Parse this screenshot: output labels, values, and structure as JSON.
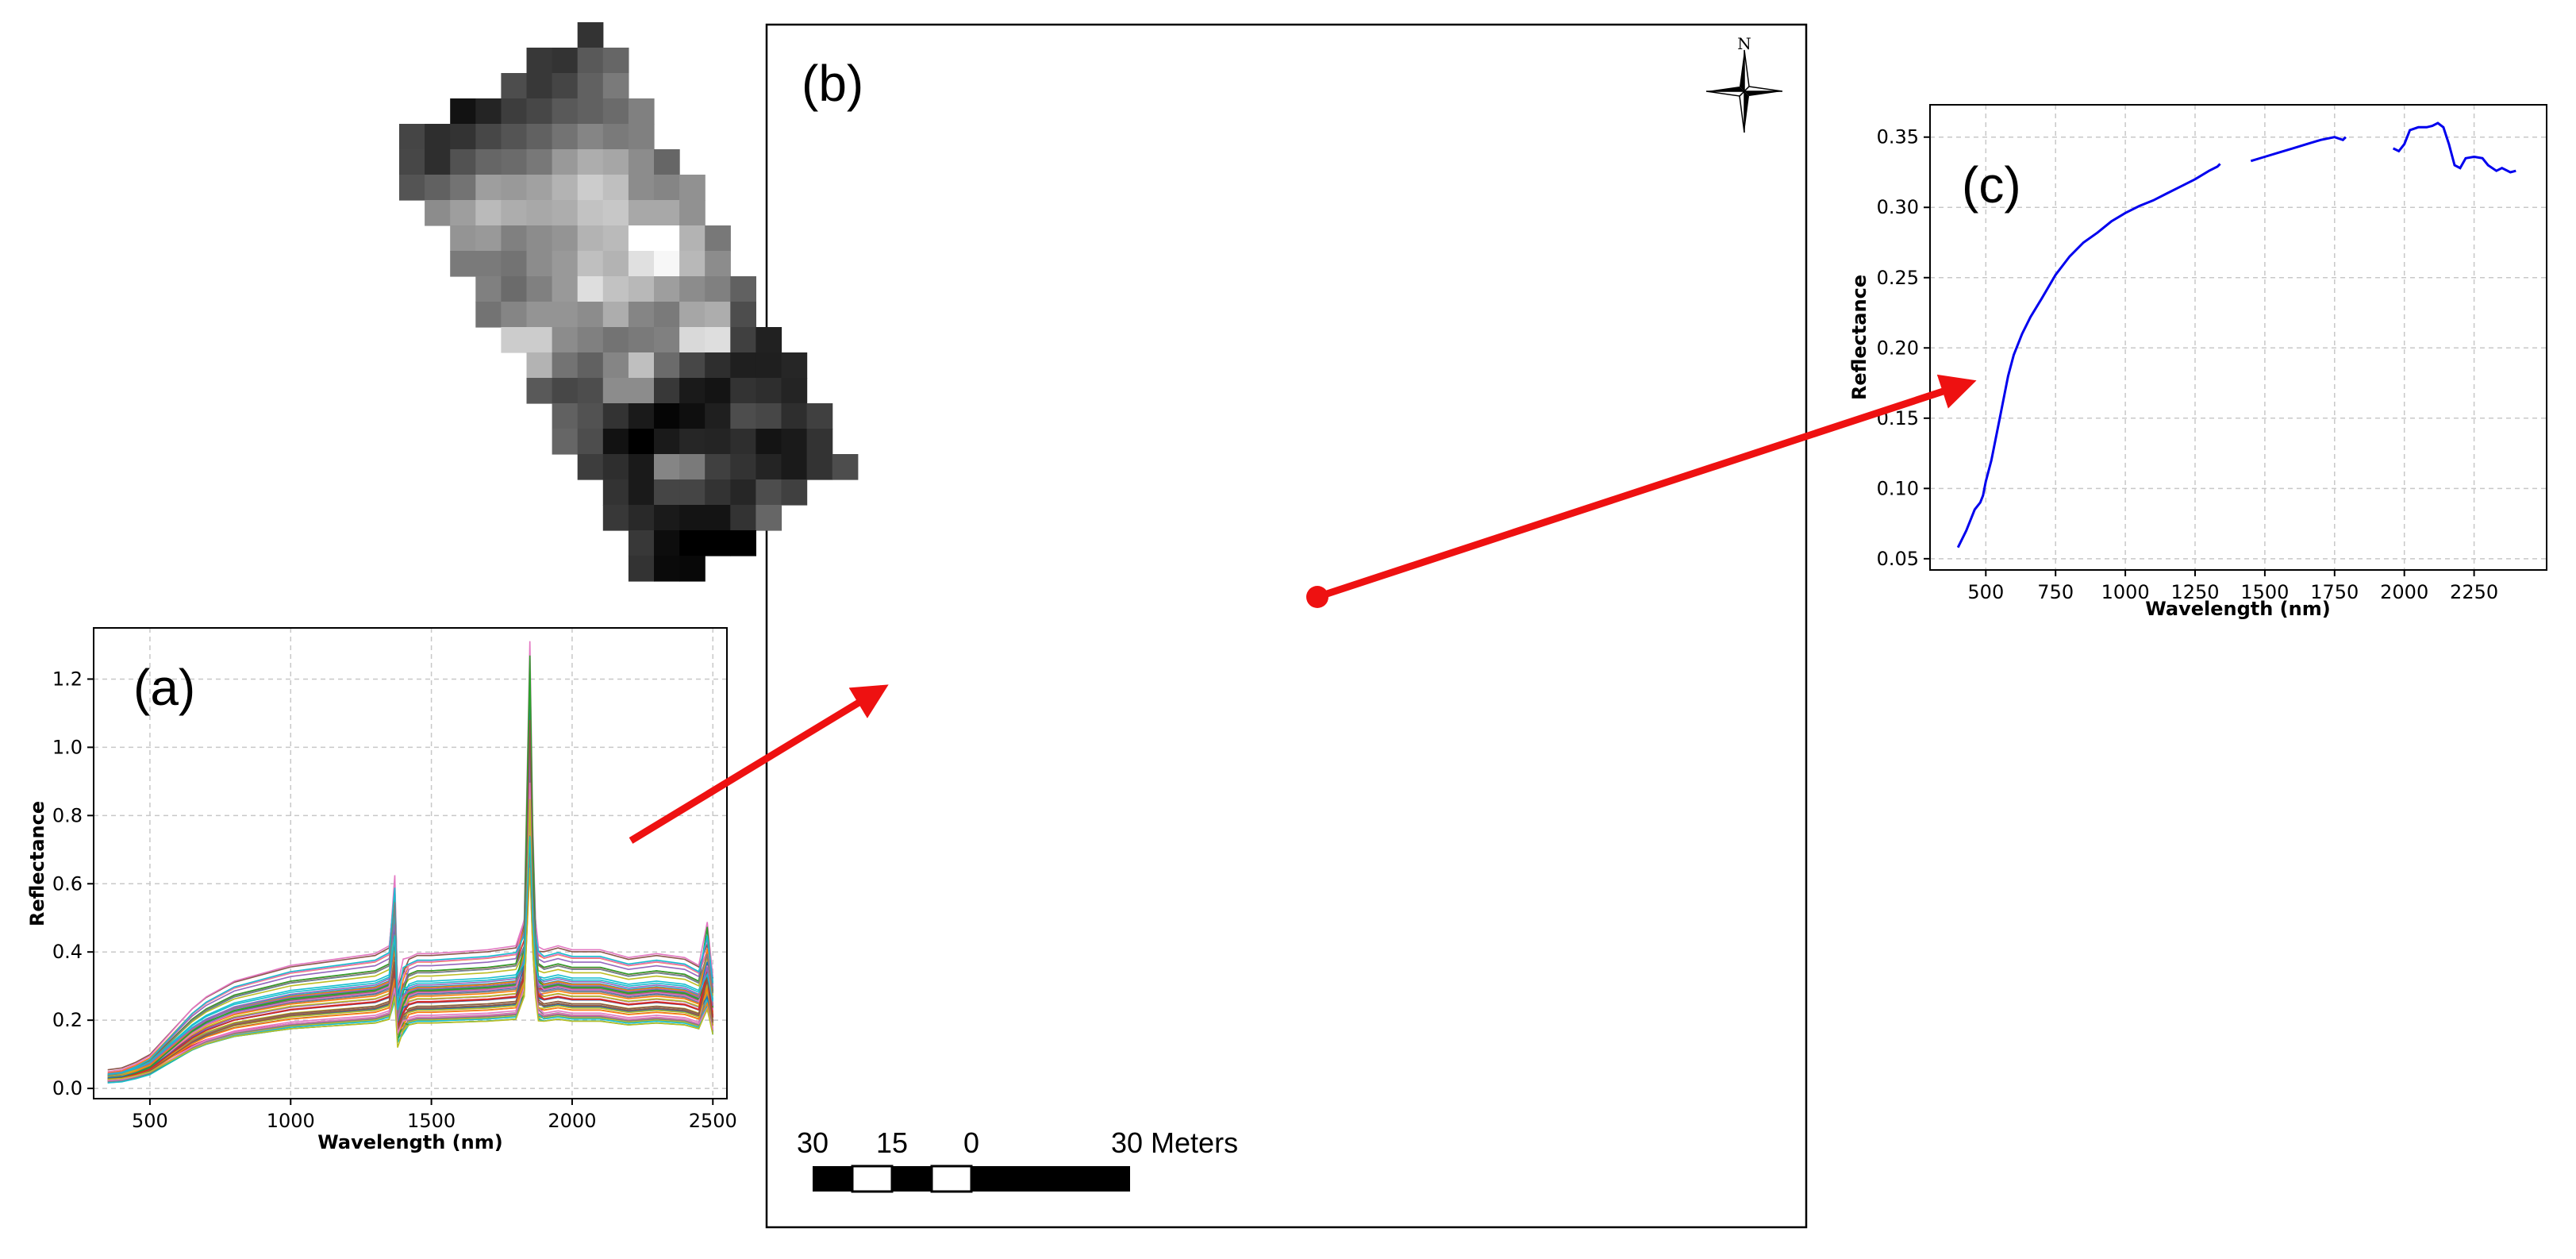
{
  "panel_a": {
    "label": "(a)",
    "xlabel": "Wavelength (nm)",
    "ylabel": "Reflectance",
    "xticks": [
      "500",
      "1000",
      "1500",
      "2000",
      "2500"
    ],
    "yticks": [
      "0.0",
      "0.2",
      "0.4",
      "0.6",
      "0.8",
      "1.0",
      "1.2"
    ]
  },
  "panel_b": {
    "label": "(b)",
    "north_label": "N",
    "scale_labels": [
      "30",
      "15",
      "0",
      "30 Meters"
    ]
  },
  "panel_c": {
    "label": "(c)",
    "xlabel": "Wavelength (nm)",
    "ylabel": "Reflectance",
    "xticks": [
      "500",
      "750",
      "1000",
      "1250",
      "1500",
      "1750",
      "2000",
      "2250"
    ],
    "yticks": [
      "0.05",
      "0.10",
      "0.15",
      "0.20",
      "0.25",
      "0.30",
      "0.35"
    ]
  },
  "colors": {
    "arrow": "#ee1111",
    "spectrum_c": "#0000ee",
    "series_palette": [
      "#1f77b4",
      "#ff7f0e",
      "#2ca02c",
      "#d62728",
      "#9467bd",
      "#8c564b",
      "#e377c2",
      "#7f7f7f",
      "#bcbd22",
      "#17becf"
    ]
  },
  "chart_data": [
    {
      "type": "line",
      "panel": "(a)",
      "xlabel": "Wavelength (nm)",
      "ylabel": "Reflectance",
      "xlim": [
        300,
        2550
      ],
      "ylim": [
        -0.03,
        1.35
      ],
      "grid": true,
      "series_count": 60,
      "series_palette": "tab10 (many overlapping pixel spectra)",
      "representative_spectrum": {
        "x": [
          350,
          400,
          450,
          500,
          550,
          600,
          650,
          700,
          750,
          800,
          900,
          1000,
          1100,
          1200,
          1300,
          1350,
          1370,
          1380,
          1400,
          1420,
          1450,
          1500,
          1600,
          1700,
          1800,
          1830,
          1850,
          1860,
          1870,
          1880,
          1900,
          1950,
          2000,
          2100,
          2200,
          2300,
          2400,
          2450,
          2480,
          2500
        ],
        "y": [
          0.04,
          0.045,
          0.06,
          0.08,
          0.12,
          0.16,
          0.2,
          0.23,
          0.25,
          0.27,
          0.29,
          0.31,
          0.32,
          0.33,
          0.34,
          0.36,
          0.5,
          0.24,
          0.3,
          0.33,
          0.34,
          0.34,
          0.345,
          0.35,
          0.36,
          0.45,
          1.18,
          0.7,
          0.45,
          0.36,
          0.35,
          0.36,
          0.35,
          0.35,
          0.33,
          0.34,
          0.33,
          0.31,
          0.4,
          0.28
        ]
      },
      "envelope": {
        "min_at_1500": 0.18,
        "max_at_1500": 0.4,
        "peak_1850_max": 1.28
      }
    },
    {
      "type": "heatmap",
      "panel": "(b)",
      "description_values": "grayscale pixel map, value 0 (black) to 1 (white), null = outside region",
      "col_x0": 503,
      "col_step": 32.1,
      "row_y0": 28,
      "row_step": 32.0,
      "rows": [
        {
          "c0": 7,
          "v": [
            0.2
          ]
        },
        {
          "c0": 5,
          "v": [
            0.22,
            0.2,
            0.35,
            0.4
          ]
        },
        {
          "c0": 4,
          "v": [
            0.3,
            0.22,
            0.27,
            0.38,
            0.48
          ]
        },
        {
          "c0": 2,
          "v": [
            0.07,
            0.14,
            0.24,
            0.28,
            0.35,
            0.38,
            0.42,
            0.5
          ]
        },
        {
          "c0": 0,
          "v": [
            0.27,
            0.18,
            0.2,
            0.28,
            0.33,
            0.38,
            0.45,
            0.52,
            0.48,
            0.5
          ]
        },
        {
          "c0": 0,
          "v": [
            0.28,
            0.18,
            0.32,
            0.4,
            0.42,
            0.47,
            0.6,
            0.68,
            0.65,
            0.55,
            0.4
          ]
        },
        {
          "c0": 0,
          "v": [
            0.33,
            0.38,
            0.45,
            0.62,
            0.6,
            0.63,
            0.7,
            0.8,
            0.75,
            0.55,
            0.52,
            0.57
          ]
        },
        {
          "c0": 1,
          "v": [
            0.55,
            0.62,
            0.73,
            0.68,
            0.66,
            0.68,
            0.76,
            0.78,
            0.66,
            0.66,
            0.57
          ]
        },
        {
          "c0": 2,
          "v": [
            0.58,
            0.6,
            0.5,
            0.55,
            0.58,
            0.7,
            0.73,
            1.0,
            1.0,
            0.7,
            0.47
          ]
        },
        {
          "c0": 2,
          "v": [
            0.48,
            0.48,
            0.45,
            0.55,
            0.6,
            0.75,
            0.7,
            0.88,
            0.97,
            0.72,
            0.55
          ]
        },
        {
          "c0": 3,
          "v": [
            0.5,
            0.42,
            0.5,
            0.6,
            0.87,
            0.76,
            0.72,
            0.62,
            0.55,
            0.5,
            0.38
          ]
        },
        {
          "c0": 3,
          "v": [
            0.45,
            0.52,
            0.58,
            0.58,
            0.55,
            0.68,
            0.52,
            0.48,
            0.65,
            0.68,
            0.3
          ]
        },
        {
          "c0": 4,
          "v": [
            0.8,
            0.8,
            0.55,
            0.5,
            0.45,
            0.48,
            0.5,
            0.85,
            0.87,
            0.25,
            0.13
          ]
        },
        {
          "c0": 5,
          "v": [
            0.7,
            0.45,
            0.38,
            0.52,
            0.75,
            0.42,
            0.28,
            0.18,
            0.12,
            0.12,
            0.15
          ]
        },
        {
          "c0": 5,
          "v": [
            0.35,
            0.28,
            0.3,
            0.55,
            0.55,
            0.22,
            0.1,
            0.08,
            0.2,
            0.18,
            0.14
          ]
        },
        {
          "c0": 6,
          "v": [
            0.38,
            0.32,
            0.2,
            0.1,
            0.02,
            0.06,
            0.12,
            0.3,
            0.28,
            0.18,
            0.25
          ]
        },
        {
          "c0": 6,
          "v": [
            0.4,
            0.3,
            0.07,
            0.0,
            0.1,
            0.15,
            0.14,
            0.18,
            0.08,
            0.1,
            0.2
          ]
        },
        {
          "c0": 7,
          "v": [
            0.24,
            0.18,
            0.1,
            0.52,
            0.48,
            0.25,
            0.2,
            0.14,
            0.1,
            0.2,
            0.3
          ]
        },
        {
          "c0": 8,
          "v": [
            0.2,
            0.1,
            0.27,
            0.27,
            0.2,
            0.15,
            0.3,
            0.25
          ]
        },
        {
          "c0": 8,
          "v": [
            0.22,
            0.16,
            0.1,
            0.08,
            0.08,
            0.2,
            0.4
          ]
        },
        {
          "c0": 9,
          "v": [
            0.22,
            0.05,
            0.0,
            0.0,
            0.0
          ]
        },
        {
          "c0": 9,
          "v": [
            0.2,
            0.04,
            0.03
          ]
        }
      ]
    },
    {
      "type": "line",
      "panel": "(c)",
      "xlabel": "Wavelength (nm)",
      "ylabel": "Reflectance",
      "xlim": [
        300,
        2510
      ],
      "ylim": [
        0.042,
        0.373
      ],
      "grid": true,
      "series": [
        {
          "x": [
            400,
            430,
            460,
            480,
            490,
            500,
            520,
            550,
            580,
            600,
            630,
            660,
            700,
            750,
            800,
            850,
            900,
            950,
            1000,
            1050,
            1100,
            1150,
            1200,
            1250,
            1300,
            1330,
            1340
          ],
          "y": [
            0.058,
            0.07,
            0.085,
            0.09,
            0.095,
            0.105,
            0.12,
            0.15,
            0.18,
            0.195,
            0.21,
            0.222,
            0.235,
            0.252,
            0.265,
            0.275,
            0.282,
            0.29,
            0.296,
            0.301,
            0.305,
            0.31,
            0.315,
            0.32,
            0.326,
            0.329,
            0.331
          ]
        },
        {
          "x": [
            1450,
            1500,
            1550,
            1600,
            1650,
            1700,
            1750,
            1780,
            1790
          ],
          "y": [
            0.333,
            0.336,
            0.339,
            0.342,
            0.345,
            0.348,
            0.35,
            0.348,
            0.35
          ]
        },
        {
          "x": [
            1960,
            1980,
            2000,
            2020,
            2050,
            2080,
            2100,
            2120,
            2140,
            2160,
            2180,
            2200,
            2220,
            2250,
            2280,
            2300,
            2330,
            2350,
            2380,
            2400
          ],
          "y": [
            0.342,
            0.34,
            0.345,
            0.355,
            0.357,
            0.357,
            0.358,
            0.36,
            0.357,
            0.345,
            0.33,
            0.328,
            0.335,
            0.336,
            0.335,
            0.33,
            0.326,
            0.328,
            0.325,
            0.326
          ]
        }
      ]
    }
  ]
}
